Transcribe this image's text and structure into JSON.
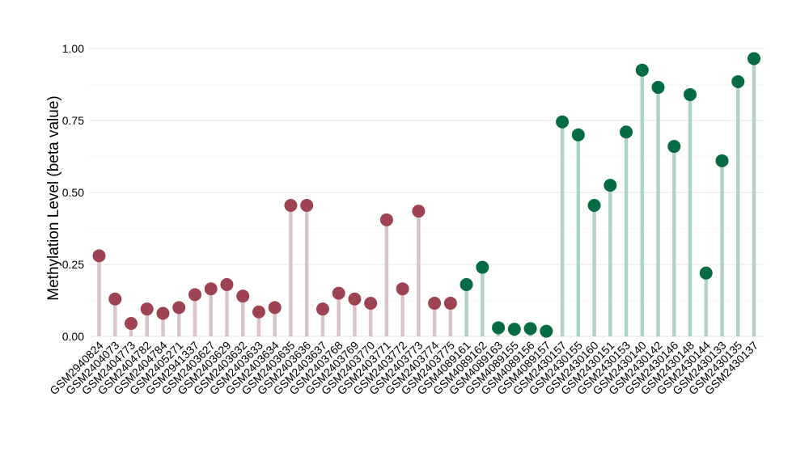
{
  "chart_data": {
    "type": "lollipop",
    "ylabel": "Methylation Level (beta value)",
    "ylim": [
      0,
      1
    ],
    "yticks": [
      "0.00",
      "0.25",
      "0.50",
      "0.75",
      "1.00"
    ],
    "grid": true,
    "colors": {
      "group1_point": "#9e4352",
      "group1_stem": "#dbc3c8",
      "group2_point": "#056b43",
      "group2_stem": "#b3d2c6"
    },
    "categories": [
      "GSM2940824",
      "GSM2404073",
      "GSM2404773",
      "GSM2404782",
      "GSM2404784",
      "GSM2405271",
      "GSM2941337",
      "GSM2403627",
      "GSM2403629",
      "GSM2403632",
      "GSM2403633",
      "GSM2403634",
      "GSM2403635",
      "GSM2403636",
      "GSM2403637",
      "GSM2403768",
      "GSM2403769",
      "GSM2403770",
      "GSM2403771",
      "GSM2403772",
      "GSM2403773",
      "GSM2403774",
      "GSM2403775",
      "GSM4089161",
      "GSM4089162",
      "GSM4089163",
      "GSM4089155",
      "GSM4089156",
      "GSM4089157",
      "GSM2430157",
      "GSM2430155",
      "GSM2430160",
      "GSM2430151",
      "GSM2430153",
      "GSM2430140",
      "GSM2430142",
      "GSM2430146",
      "GSM2430148",
      "GSM2430144",
      "GSM2430133",
      "GSM2430135",
      "GSM2430137"
    ],
    "values": [
      0.28,
      0.13,
      0.045,
      0.095,
      0.08,
      0.1,
      0.145,
      0.165,
      0.18,
      0.14,
      0.085,
      0.1,
      0.455,
      0.455,
      0.095,
      0.15,
      0.13,
      0.115,
      0.405,
      0.165,
      0.435,
      0.115,
      0.115,
      0.18,
      0.24,
      0.03,
      0.025,
      0.027,
      0.018,
      0.745,
      0.7,
      0.455,
      0.525,
      0.71,
      0.925,
      0.865,
      0.66,
      0.84,
      0.22,
      0.61,
      0.885,
      0.965
    ],
    "groups": [
      1,
      1,
      1,
      1,
      1,
      1,
      1,
      1,
      1,
      1,
      1,
      1,
      1,
      1,
      1,
      1,
      1,
      1,
      1,
      1,
      1,
      1,
      1,
      2,
      2,
      2,
      2,
      2,
      2,
      2,
      2,
      2,
      2,
      2,
      2,
      2,
      2,
      2,
      2,
      2,
      2,
      2
    ]
  }
}
